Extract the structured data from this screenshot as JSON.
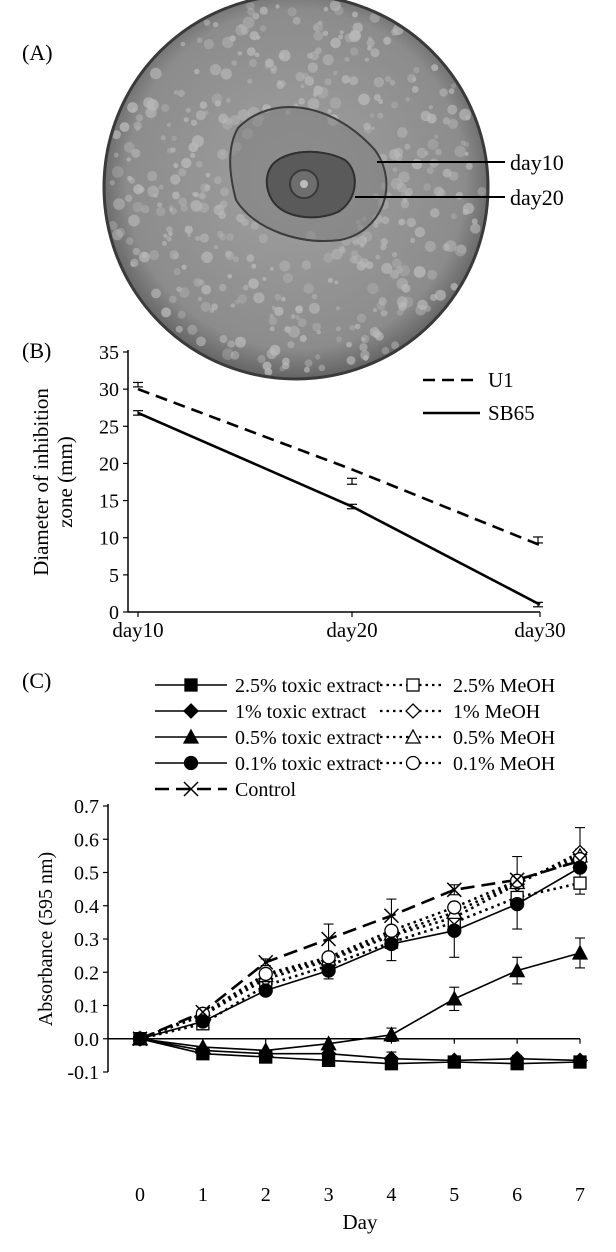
{
  "panel_labels": {
    "a": "(A)",
    "b": "(B)",
    "c": "(C)"
  },
  "photo": {
    "labels": {
      "outer": "day10",
      "inner": "day20"
    },
    "colors": {
      "dish_bg": "#8a8a8a",
      "colony": "#b9b9b9",
      "zone_outer": "#7f7f7f",
      "zone_inner": "#5f5f5f"
    }
  },
  "chart_data": [
    {
      "panel": "B",
      "type": "line",
      "categories": [
        "day10",
        "day20",
        "day30"
      ],
      "ylabel": "Diameter of inhibition zone (mm)",
      "xlabel": "",
      "ylim": [
        0,
        35
      ],
      "yticks": [
        0,
        5,
        10,
        15,
        20,
        25,
        30,
        35
      ],
      "legend_position": "top-right",
      "series": [
        {
          "name": "U1",
          "style": "dashed",
          "values": [
            30.0,
            19.2,
            9.0
          ],
          "error_points": [
            30.6,
            17.6,
            9.7
          ],
          "err": [
            0.3,
            0.4,
            0.4
          ]
        },
        {
          "name": "SB65",
          "style": "solid",
          "values": [
            26.8,
            14.2,
            1.0
          ],
          "error_points": [
            26.8,
            14.2,
            1.0
          ],
          "err": [
            0.3,
            0.3,
            0.3
          ]
        }
      ]
    },
    {
      "panel": "C",
      "type": "line",
      "x": [
        0,
        1,
        2,
        3,
        4,
        5,
        6,
        7
      ],
      "xlabel": "Day",
      "ylabel": "Absorbance (595 nm)",
      "ylim": [
        -0.1,
        0.7
      ],
      "yticks": [
        "-0.1",
        "0.0",
        "0.1",
        "0.2",
        "0.3",
        "0.4",
        "0.5",
        "0.6",
        "0.7"
      ],
      "legend_position": "top",
      "series": [
        {
          "name": "2.5% toxic extract",
          "marker": "square-filled",
          "style": "solid",
          "values": [
            0.0,
            -0.045,
            -0.055,
            -0.065,
            -0.075,
            -0.07,
            -0.075,
            -0.07
          ],
          "err": [
            0,
            0.01,
            0.01,
            0.01,
            0.01,
            0.01,
            0.01,
            0.01
          ]
        },
        {
          "name": "1% toxic extract",
          "marker": "diamond-filled",
          "style": "solid",
          "values": [
            0.0,
            -0.035,
            -0.045,
            -0.045,
            -0.06,
            -0.065,
            -0.06,
            -0.065
          ],
          "err": [
            0,
            0.01,
            0.01,
            0.01,
            0.02,
            0.01,
            0.01,
            0.01
          ]
        },
        {
          "name": "0.5% toxic extract",
          "marker": "triangle-filled",
          "style": "solid",
          "values": [
            0.0,
            -0.025,
            -0.035,
            -0.015,
            0.012,
            0.12,
            0.205,
            0.258
          ],
          "err": [
            0,
            0.005,
            0.005,
            0.005,
            0.02,
            0.035,
            0.04,
            0.045
          ]
        },
        {
          "name": "0.1% toxic extract",
          "marker": "circle-filled",
          "style": "solid",
          "values": [
            0.0,
            0.052,
            0.145,
            0.205,
            0.285,
            0.325,
            0.405,
            0.515
          ],
          "err": [
            0,
            0.005,
            0.005,
            0.025,
            0.05,
            0.08,
            0.075,
            0.04
          ]
        },
        {
          "name": "Control",
          "marker": "x",
          "style": "long-dash",
          "values": [
            0.0,
            0.08,
            0.23,
            0.3,
            0.37,
            0.448,
            0.478,
            0.535
          ],
          "err": [
            0,
            0.005,
            0.01,
            0.045,
            0.05,
            0.015,
            0.07,
            0.1
          ]
        },
        {
          "name": "2.5% MeOH",
          "marker": "square-open",
          "style": "dotted",
          "values": [
            0.0,
            0.045,
            0.16,
            0.22,
            0.29,
            0.35,
            0.425,
            0.468
          ],
          "err": [
            0,
            0.005,
            0.01,
            0.01,
            0.01,
            0.01,
            0.01,
            0.01
          ]
        },
        {
          "name": "1% MeOH",
          "marker": "diamond-open",
          "style": "dotted",
          "values": [
            0.0,
            0.07,
            0.18,
            0.235,
            0.31,
            0.365,
            0.465,
            0.56
          ],
          "err": [
            0,
            0.005,
            0.01,
            0.01,
            0.01,
            0.01,
            0.01,
            0.01
          ]
        },
        {
          "name": "0.5% MeOH",
          "marker": "triangle-open",
          "style": "dotted",
          "values": [
            0.0,
            0.072,
            0.19,
            0.24,
            0.315,
            0.38,
            0.47,
            0.55
          ],
          "err": [
            0,
            0.005,
            0.01,
            0.01,
            0.01,
            0.01,
            0.01,
            0.01
          ]
        },
        {
          "name": "0.1% MeOH",
          "marker": "circle-open",
          "style": "dotted",
          "values": [
            0.0,
            0.075,
            0.195,
            0.245,
            0.325,
            0.395,
            0.475,
            0.54
          ],
          "err": [
            0,
            0.005,
            0.01,
            0.01,
            0.01,
            0.01,
            0.01,
            0.01
          ]
        }
      ]
    }
  ]
}
